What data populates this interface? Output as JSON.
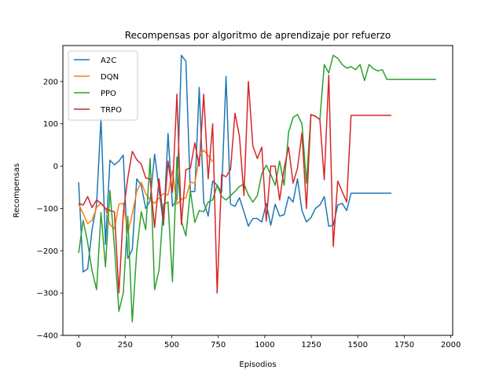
{
  "chart_data": {
    "type": "line",
    "title": "Recompensas por algoritmo de aprendizaje por refuerzo",
    "xlabel": "Episodios",
    "ylabel": "Recompensas",
    "xlim": [
      -85,
      2010
    ],
    "ylim": [
      -400,
      285
    ],
    "xticks": [
      0,
      250,
      500,
      750,
      1000,
      1250,
      1500,
      1750,
      2000
    ],
    "yticks": [
      -400,
      -300,
      -200,
      -100,
      0,
      100,
      200
    ],
    "grid": false,
    "legend_position": "top-left",
    "series": [
      {
        "name": "A2C",
        "color": "#1f77b4",
        "x": [
          0,
          24,
          48,
          72,
          96,
          120,
          144,
          168,
          192,
          216,
          240,
          264,
          288,
          312,
          336,
          360,
          384,
          408,
          432,
          456,
          480,
          504,
          528,
          552,
          576,
          600,
          624,
          648,
          672,
          696,
          720,
          744,
          768,
          792,
          816,
          840,
          864,
          888,
          912,
          936,
          960,
          984,
          1008,
          1032,
          1056,
          1080,
          1104,
          1128,
          1152,
          1176,
          1200,
          1224,
          1248,
          1272,
          1296,
          1320,
          1344,
          1368,
          1392,
          1416,
          1440,
          1464,
          1488,
          1512,
          1536,
          1560,
          1584,
          1608,
          1632,
          1656,
          1680
        ],
        "values": [
          -38,
          -250,
          -243,
          -150,
          -90,
          113,
          -185,
          14,
          3,
          12,
          26,
          -218,
          -198,
          -30,
          -45,
          -100,
          -82,
          28,
          -55,
          -140,
          77,
          -95,
          -80,
          262,
          248,
          -60,
          -60,
          186,
          -85,
          -118,
          -35,
          -45,
          -62,
          212,
          -90,
          -95,
          -75,
          -108,
          -142,
          -124,
          -124,
          -132,
          -88,
          -140,
          -90,
          -118,
          -115,
          -72,
          -85,
          -30,
          -105,
          -132,
          -122,
          -100,
          -92,
          -72,
          -142,
          -140,
          -92,
          -88,
          -105,
          -64,
          -64,
          -64,
          -64,
          -64,
          -64,
          -64,
          -64,
          -64,
          -64
        ]
      },
      {
        "name": "DQN",
        "color": "#ff7f0e",
        "x": [
          0,
          24,
          48,
          72,
          96,
          120,
          144,
          168,
          192,
          216,
          240,
          264,
          288,
          312,
          336,
          360,
          384,
          408,
          432,
          456,
          480,
          504,
          528,
          552,
          576,
          600,
          624,
          648,
          672,
          696,
          720
        ],
        "values": [
          -90,
          -112,
          -136,
          -128,
          -98,
          -87,
          -100,
          -138,
          -148,
          -90,
          -88,
          -158,
          -113,
          -60,
          -38,
          -65,
          -80,
          -88,
          -75,
          -65,
          -68,
          -10,
          -90,
          -78,
          -75,
          -38,
          -40,
          20,
          38,
          25,
          10
        ]
      },
      {
        "name": "PPO",
        "color": "#2ca02c",
        "x": [
          0,
          24,
          48,
          72,
          96,
          120,
          144,
          168,
          192,
          216,
          240,
          264,
          288,
          312,
          336,
          360,
          384,
          408,
          432,
          456,
          480,
          504,
          528,
          552,
          576,
          600,
          624,
          648,
          672,
          696,
          720,
          744,
          768,
          792,
          816,
          840,
          864,
          888,
          912,
          936,
          960,
          984,
          1008,
          1032,
          1056,
          1080,
          1104,
          1128,
          1152,
          1176,
          1200,
          1224,
          1248,
          1272,
          1296,
          1320,
          1344,
          1368,
          1392,
          1416,
          1440,
          1464,
          1488,
          1512,
          1536,
          1560,
          1584,
          1608,
          1632,
          1656,
          1680,
          1704,
          1728,
          1752,
          1776,
          1800,
          1824,
          1848,
          1872,
          1896,
          1920
        ],
        "values": [
          -205,
          -128,
          -180,
          -248,
          -292,
          -110,
          -238,
          -58,
          -190,
          -343,
          -300,
          -118,
          -368,
          -200,
          -108,
          -150,
          18,
          -292,
          -245,
          -90,
          -85,
          -273,
          22,
          -130,
          -165,
          -58,
          -133,
          -105,
          -108,
          -85,
          -80,
          -45,
          -72,
          -80,
          -70,
          -60,
          -48,
          -42,
          -68,
          -85,
          -70,
          -18,
          2,
          -20,
          -45,
          12,
          -45,
          80,
          115,
          122,
          100,
          -40,
          122,
          118,
          110,
          240,
          220,
          262,
          255,
          240,
          232,
          235,
          228,
          240,
          202,
          240,
          230,
          225,
          228,
          205,
          205,
          205,
          205,
          205,
          205,
          205,
          205,
          205,
          205,
          205,
          205
        ]
      },
      {
        "name": "TRPO",
        "color": "#d62728",
        "x": [
          0,
          24,
          48,
          72,
          96,
          120,
          144,
          168,
          192,
          216,
          240,
          264,
          288,
          312,
          336,
          360,
          384,
          408,
          432,
          456,
          480,
          504,
          528,
          552,
          576,
          600,
          624,
          648,
          672,
          696,
          720,
          744,
          768,
          792,
          816,
          840,
          864,
          888,
          912,
          936,
          960,
          984,
          1008,
          1032,
          1056,
          1080,
          1104,
          1128,
          1152,
          1176,
          1200,
          1224,
          1248,
          1272,
          1296,
          1320,
          1344,
          1368,
          1392,
          1416,
          1440,
          1464,
          1488,
          1512,
          1536,
          1560,
          1584,
          1608,
          1632,
          1656,
          1680
        ],
        "values": [
          -88,
          -92,
          -72,
          -98,
          -80,
          -88,
          -100,
          -105,
          -108,
          -300,
          -110,
          -28,
          35,
          15,
          5,
          -28,
          -30,
          -145,
          -30,
          -130,
          12,
          -62,
          170,
          -138,
          -8,
          -5,
          55,
          0,
          170,
          -30,
          100,
          -300,
          -20,
          -25,
          -8,
          125,
          70,
          -70,
          200,
          48,
          18,
          45,
          -130,
          0,
          0,
          -80,
          -5,
          45,
          -40,
          -5,
          78,
          -100,
          122,
          118,
          110,
          -32,
          215,
          -190,
          -35,
          -60,
          -85,
          120,
          120,
          120,
          120,
          120,
          120,
          120,
          120,
          120,
          120
        ]
      }
    ]
  }
}
